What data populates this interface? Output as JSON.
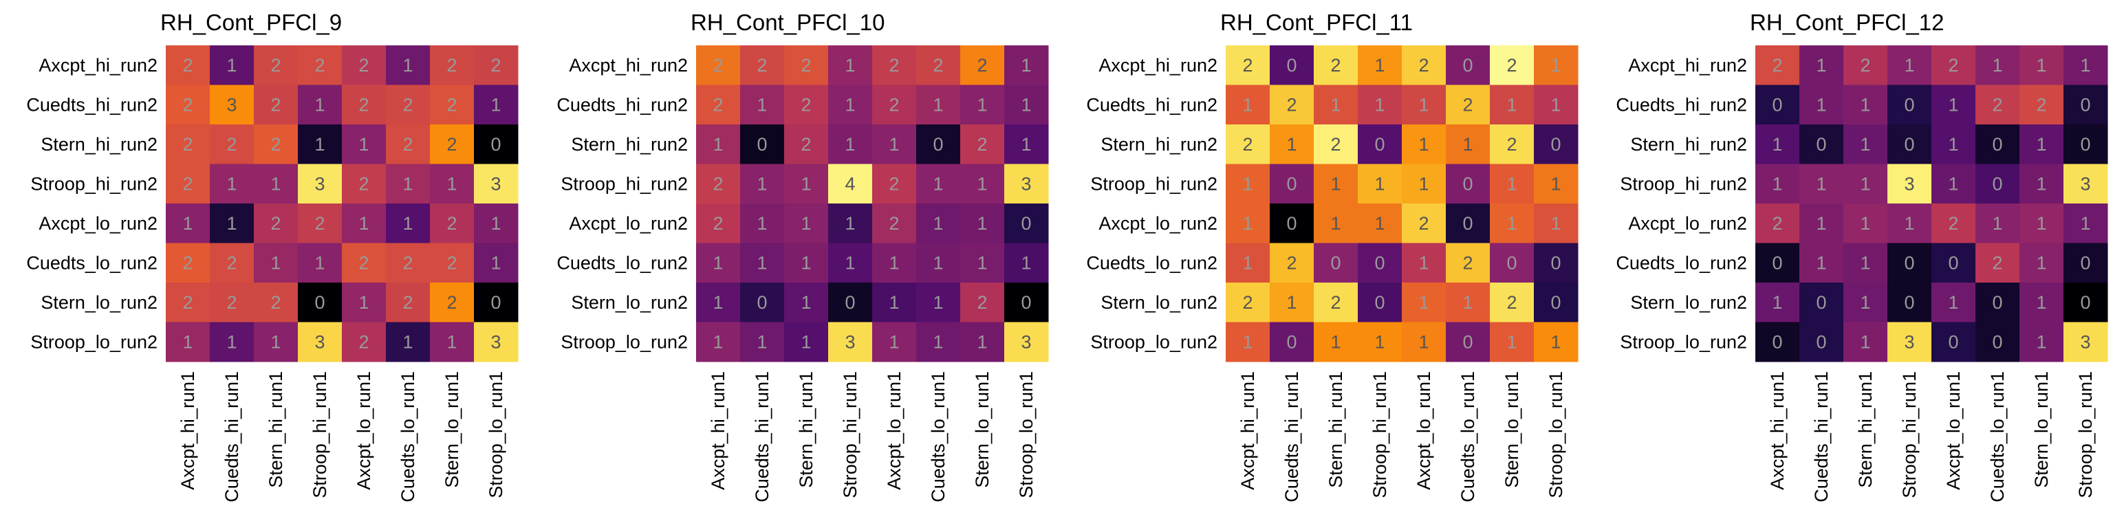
{
  "chart_data": [
    {
      "type": "heatmap",
      "title": "RH_Cont_PFCl_9",
      "x_labels": [
        "Axcpt_hi_run1",
        "Cuedts_hi_run1",
        "Stern_hi_run1",
        "Stroop_hi_run1",
        "Axcpt_lo_run1",
        "Cuedts_lo_run1",
        "Stern_lo_run1",
        "Stroop_lo_run1"
      ],
      "y_labels": [
        "Axcpt_hi_run2",
        "Cuedts_hi_run2",
        "Stern_hi_run2",
        "Stroop_hi_run2",
        "Axcpt_lo_run2",
        "Cuedts_lo_run2",
        "Stern_lo_run2",
        "Stroop_lo_run2"
      ],
      "cell_labels": [
        [
          "2",
          "1",
          "2",
          "2",
          "2",
          "1",
          "2",
          "2"
        ],
        [
          "2",
          "3",
          "2",
          "1",
          "2",
          "2",
          "2",
          "1"
        ],
        [
          "2",
          "2",
          "2",
          "1",
          "1",
          "2",
          "2",
          "0"
        ],
        [
          "2",
          "1",
          "1",
          "3",
          "2",
          "1",
          "1",
          "3"
        ],
        [
          "1",
          "1",
          "2",
          "2",
          "1",
          "1",
          "2",
          "1"
        ],
        [
          "2",
          "2",
          "1",
          "1",
          "2",
          "2",
          "2",
          "1"
        ],
        [
          "2",
          "2",
          "2",
          "0",
          "1",
          "2",
          "2",
          "0"
        ],
        [
          "1",
          "1",
          "1",
          "3",
          "2",
          "1",
          "1",
          "3"
        ]
      ],
      "values": [
        [
          0.48,
          0.22,
          0.45,
          0.46,
          0.4,
          0.25,
          0.45,
          0.44
        ],
        [
          0.5,
          0.6,
          0.44,
          0.28,
          0.44,
          0.45,
          0.48,
          0.22
        ],
        [
          0.48,
          0.46,
          0.5,
          0.06,
          0.3,
          0.46,
          0.6,
          0.0
        ],
        [
          0.48,
          0.32,
          0.32,
          0.85,
          0.42,
          0.35,
          0.32,
          0.85
        ],
        [
          0.3,
          0.08,
          0.38,
          0.42,
          0.32,
          0.2,
          0.38,
          0.28
        ],
        [
          0.5,
          0.46,
          0.33,
          0.3,
          0.48,
          0.46,
          0.46,
          0.25
        ],
        [
          0.46,
          0.45,
          0.45,
          0.0,
          0.32,
          0.44,
          0.6,
          0.0
        ],
        [
          0.33,
          0.22,
          0.3,
          0.78,
          0.38,
          0.12,
          0.3,
          0.8
        ]
      ]
    },
    {
      "type": "heatmap",
      "title": "RH_Cont_PFCl_10",
      "x_labels": [
        "Axcpt_hi_run1",
        "Cuedts_hi_run1",
        "Stern_hi_run1",
        "Stroop_hi_run1",
        "Axcpt_lo_run1",
        "Cuedts_lo_run1",
        "Stern_lo_run1",
        "Stroop_lo_run1"
      ],
      "y_labels": [
        "Axcpt_hi_run2",
        "Cuedts_hi_run2",
        "Stern_hi_run2",
        "Stroop_hi_run2",
        "Axcpt_lo_run2",
        "Cuedts_lo_run2",
        "Stern_lo_run2",
        "Stroop_lo_run2"
      ],
      "cell_labels": [
        [
          "2",
          "2",
          "2",
          "1",
          "2",
          "2",
          "2",
          "1"
        ],
        [
          "2",
          "1",
          "2",
          "1",
          "2",
          "1",
          "1",
          "1"
        ],
        [
          "1",
          "0",
          "2",
          "1",
          "1",
          "0",
          "2",
          "1"
        ],
        [
          "2",
          "1",
          "1",
          "4",
          "2",
          "1",
          "1",
          "3"
        ],
        [
          "2",
          "1",
          "1",
          "1",
          "2",
          "1",
          "1",
          "0"
        ],
        [
          "1",
          "1",
          "1",
          "1",
          "1",
          "1",
          "1",
          "1"
        ],
        [
          "1",
          "0",
          "1",
          "0",
          "1",
          "1",
          "2",
          "0"
        ],
        [
          "1",
          "1",
          "1",
          "3",
          "1",
          "1",
          "1",
          "3"
        ]
      ],
      "values": [
        [
          0.55,
          0.45,
          0.48,
          0.32,
          0.42,
          0.44,
          0.58,
          0.28
        ],
        [
          0.48,
          0.33,
          0.4,
          0.3,
          0.38,
          0.34,
          0.3,
          0.26
        ],
        [
          0.35,
          0.04,
          0.38,
          0.28,
          0.3,
          0.06,
          0.4,
          0.2
        ],
        [
          0.42,
          0.3,
          0.32,
          0.92,
          0.4,
          0.3,
          0.3,
          0.8
        ],
        [
          0.4,
          0.28,
          0.3,
          0.15,
          0.35,
          0.25,
          0.26,
          0.1
        ],
        [
          0.3,
          0.25,
          0.28,
          0.2,
          0.28,
          0.26,
          0.27,
          0.18
        ],
        [
          0.22,
          0.12,
          0.22,
          0.05,
          0.18,
          0.2,
          0.38,
          0.0
        ],
        [
          0.3,
          0.25,
          0.2,
          0.8,
          0.3,
          0.25,
          0.26,
          0.8
        ]
      ]
    },
    {
      "type": "heatmap",
      "title": "RH_Cont_PFCl_11",
      "x_labels": [
        "Axcpt_hi_run1",
        "Cuedts_hi_run1",
        "Stern_hi_run1",
        "Stroop_hi_run1",
        "Axcpt_lo_run1",
        "Cuedts_lo_run1",
        "Stern_lo_run1",
        "Stroop_lo_run1"
      ],
      "y_labels": [
        "Axcpt_hi_run2",
        "Cuedts_hi_run2",
        "Stern_hi_run2",
        "Stroop_hi_run2",
        "Axcpt_lo_run2",
        "Cuedts_lo_run2",
        "Stern_lo_run2",
        "Stroop_lo_run2"
      ],
      "cell_labels": [
        [
          "2",
          "0",
          "2",
          "1",
          "2",
          "0",
          "2",
          "1"
        ],
        [
          "1",
          "2",
          "1",
          "1",
          "1",
          "2",
          "1",
          "1"
        ],
        [
          "2",
          "1",
          "2",
          "0",
          "1",
          "1",
          "2",
          "0"
        ],
        [
          "1",
          "0",
          "1",
          "1",
          "1",
          "0",
          "1",
          "1"
        ],
        [
          "1",
          "0",
          "1",
          "1",
          "2",
          "0",
          "1",
          "1"
        ],
        [
          "1",
          "2",
          "0",
          "0",
          "1",
          "2",
          "0",
          "0"
        ],
        [
          "2",
          "1",
          "2",
          "0",
          "1",
          "1",
          "2",
          "0"
        ],
        [
          "1",
          "0",
          "1",
          "1",
          "1",
          "0",
          "1",
          "1"
        ]
      ],
      "values": [
        [
          0.82,
          0.2,
          0.8,
          0.62,
          0.75,
          0.28,
          0.96,
          0.55
        ],
        [
          0.5,
          0.74,
          0.48,
          0.42,
          0.45,
          0.72,
          0.45,
          0.4
        ],
        [
          0.82,
          0.62,
          0.9,
          0.2,
          0.62,
          0.56,
          0.8,
          0.15
        ],
        [
          0.52,
          0.28,
          0.56,
          0.68,
          0.66,
          0.28,
          0.5,
          0.56
        ],
        [
          0.52,
          0.0,
          0.56,
          0.56,
          0.75,
          0.08,
          0.52,
          0.48
        ],
        [
          0.48,
          0.7,
          0.3,
          0.22,
          0.4,
          0.72,
          0.3,
          0.12
        ],
        [
          0.75,
          0.65,
          0.8,
          0.18,
          0.52,
          0.5,
          0.82,
          0.1
        ],
        [
          0.5,
          0.24,
          0.6,
          0.6,
          0.58,
          0.26,
          0.5,
          0.6
        ]
      ]
    },
    {
      "type": "heatmap",
      "title": "RH_Cont_PFCl_12",
      "x_labels": [
        "Axcpt_hi_run1",
        "Cuedts_hi_run1",
        "Stern_hi_run1",
        "Stroop_hi_run1",
        "Axcpt_lo_run1",
        "Cuedts_lo_run1",
        "Stern_lo_run1",
        "Stroop_lo_run1"
      ],
      "y_labels": [
        "Axcpt_hi_run2",
        "Cuedts_hi_run2",
        "Stern_hi_run2",
        "Stroop_hi_run2",
        "Axcpt_lo_run2",
        "Cuedts_lo_run2",
        "Stern_lo_run2",
        "Stroop_lo_run2"
      ],
      "cell_labels": [
        [
          "2",
          "1",
          "2",
          "1",
          "2",
          "1",
          "1",
          "1"
        ],
        [
          "0",
          "1",
          "1",
          "0",
          "1",
          "2",
          "2",
          "0"
        ],
        [
          "1",
          "0",
          "1",
          "0",
          "1",
          "0",
          "1",
          "0"
        ],
        [
          "1",
          "1",
          "1",
          "3",
          "1",
          "0",
          "1",
          "3"
        ],
        [
          "2",
          "1",
          "1",
          "1",
          "2",
          "1",
          "1",
          "1"
        ],
        [
          "0",
          "1",
          "1",
          "0",
          "0",
          "2",
          "1",
          "0"
        ],
        [
          "1",
          "0",
          "1",
          "0",
          "1",
          "0",
          "1",
          "0"
        ],
        [
          "0",
          "0",
          "1",
          "3",
          "0",
          "0",
          "1",
          "3"
        ]
      ],
      "values": [
        [
          0.46,
          0.26,
          0.38,
          0.3,
          0.38,
          0.3,
          0.34,
          0.26
        ],
        [
          0.1,
          0.26,
          0.28,
          0.1,
          0.2,
          0.42,
          0.45,
          0.08
        ],
        [
          0.2,
          0.08,
          0.24,
          0.08,
          0.2,
          0.06,
          0.22,
          0.05
        ],
        [
          0.28,
          0.3,
          0.3,
          0.9,
          0.24,
          0.18,
          0.26,
          0.82
        ],
        [
          0.38,
          0.28,
          0.32,
          0.3,
          0.4,
          0.3,
          0.32,
          0.25
        ],
        [
          0.05,
          0.28,
          0.26,
          0.05,
          0.1,
          0.4,
          0.3,
          0.06
        ],
        [
          0.24,
          0.1,
          0.25,
          0.05,
          0.25,
          0.06,
          0.26,
          0.0
        ],
        [
          0.05,
          0.1,
          0.28,
          0.8,
          0.1,
          0.06,
          0.26,
          0.8
        ]
      ]
    }
  ]
}
